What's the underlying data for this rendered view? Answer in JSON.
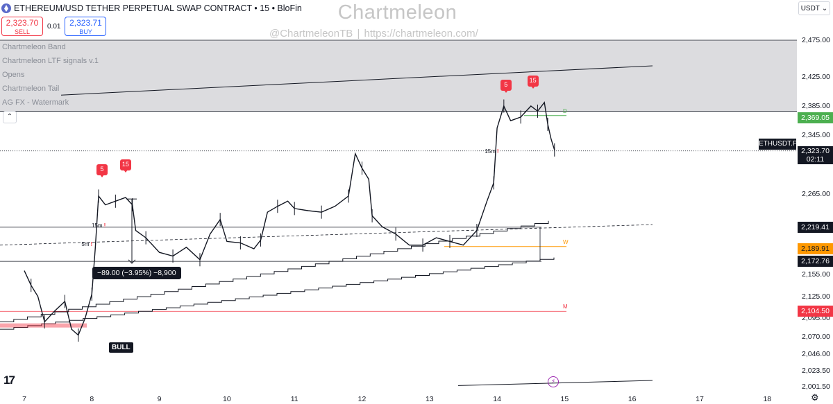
{
  "header": {
    "title": "ETHEREUM/USD TETHER PERPETUAL SWAP CONTRACT • 15 • BloFin",
    "icon": "ethereum-icon"
  },
  "trade": {
    "sell_price": "2,323.70",
    "sell_label": "SELL",
    "spread": "0.01",
    "buy_price": "2,323.71",
    "buy_label": "BUY"
  },
  "watermark": {
    "title": "Chartmeleon",
    "subtitle": "@ChartmeleonTB     |     https://chartmeleon.com/"
  },
  "indicators": [
    {
      "label": "Chartmeleon Band"
    },
    {
      "label": "Chartmeleon LTF signals v.1"
    },
    {
      "label": "Opens"
    },
    {
      "label": "Chartmeleon Tail"
    },
    {
      "label": "AG FX - Watermark"
    }
  ],
  "collapse_icon": "chevron-up-icon",
  "currency": "USDT",
  "y_axis": {
    "ticks": [
      {
        "label": "2,475.00",
        "value": 2475
      },
      {
        "label": "2,425.00",
        "value": 2425
      },
      {
        "label": "2,385.00",
        "value": 2385
      },
      {
        "label": "2,345.00",
        "value": 2345
      },
      {
        "label": "2,265.00",
        "value": 2265
      },
      {
        "label": "2,155.00",
        "value": 2155
      },
      {
        "label": "2,125.00",
        "value": 2125
      },
      {
        "label": "2,095.00",
        "value": 2095
      },
      {
        "label": "2,070.00",
        "value": 2070
      },
      {
        "label": "2,046.00",
        "value": 2046
      },
      {
        "label": "2,023.50",
        "value": 2023.5
      },
      {
        "label": "2,001.50",
        "value": 2001.5
      }
    ],
    "price_tags": [
      {
        "label": "2,369.05",
        "value": 2369.05,
        "color": "#4caf50",
        "text_color": "#ffffff"
      },
      {
        "label": "2,219.41",
        "value": 2219.41,
        "color": "#131722",
        "text_color": "#ffffff"
      },
      {
        "label": "2,189.91",
        "value": 2189.91,
        "color": "#ff9800",
        "text_color": "#131722"
      },
      {
        "label": "2,172.76",
        "value": 2172.76,
        "color": "#131722",
        "text_color": "#ffffff"
      },
      {
        "label": "2,104.50",
        "value": 2104.5,
        "color": "#f23645",
        "text_color": "#ffffff"
      }
    ],
    "current": {
      "label": "2,323.70",
      "countdown": "02:11",
      "value": 2323.7
    },
    "symbol_badge": "ETHUSDT.P"
  },
  "x_axis": {
    "ticks": [
      {
        "label": "7",
        "day": 7
      },
      {
        "label": "8",
        "day": 8
      },
      {
        "label": "9",
        "day": 9
      },
      {
        "label": "10",
        "day": 10
      },
      {
        "label": "11",
        "day": 11
      },
      {
        "label": "12",
        "day": 12
      },
      {
        "label": "13",
        "day": 13
      },
      {
        "label": "14",
        "day": 14
      },
      {
        "label": "15",
        "day": 15
      },
      {
        "label": "16",
        "day": 16
      },
      {
        "label": "17",
        "day": 17
      },
      {
        "label": "18",
        "day": 18
      }
    ]
  },
  "annotations": {
    "measure": "−89.00 (−3.95%) −8,900",
    "bull": "BULL",
    "tf_marks": [
      {
        "label": "15m",
        "flag": "!",
        "day": 8.1,
        "price": 2220
      },
      {
        "label": "5m",
        "flag": "!",
        "day": 7.95,
        "price": 2195
      },
      {
        "label": "15m",
        "flag": "!",
        "day": 13.92,
        "price": 2322
      }
    ],
    "signals": [
      {
        "label": "5",
        "day": 8.15,
        "price": 2287
      },
      {
        "label": "15",
        "day": 8.5,
        "price": 2293
      },
      {
        "label": "5",
        "day": 14.13,
        "price": 2402
      },
      {
        "label": "15",
        "day": 14.53,
        "price": 2408
      }
    ],
    "levels": [
      {
        "letter": "D",
        "price": 2372,
        "color": "#4caf50"
      },
      {
        "letter": "W",
        "price": 2193,
        "color": "#ff9800"
      },
      {
        "letter": "M",
        "price": 2104.5,
        "color": "#f23645"
      }
    ]
  },
  "icons": {
    "logo": "tradingview-logo-icon",
    "flash": "lightning-icon",
    "settings": "gear-icon"
  }
}
